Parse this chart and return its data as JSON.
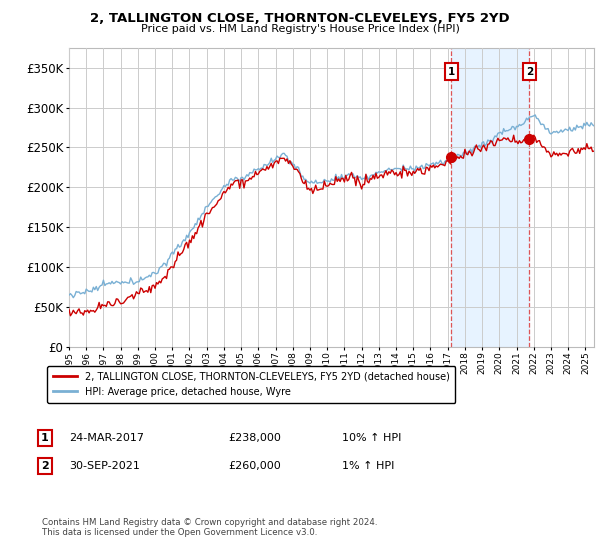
{
  "title": "2, TALLINGTON CLOSE, THORNTON-CLEVELEYS, FY5 2YD",
  "subtitle": "Price paid vs. HM Land Registry's House Price Index (HPI)",
  "ytick_values": [
    0,
    50000,
    100000,
    150000,
    200000,
    250000,
    300000,
    350000
  ],
  "ytick_labels": [
    "£0",
    "£50K",
    "£100K",
    "£150K",
    "£200K",
    "£250K",
    "£300K",
    "£350K"
  ],
  "ylim": [
    0,
    375000
  ],
  "xlim": [
    1995,
    2025.5
  ],
  "legend_label_red": "2, TALLINGTON CLOSE, THORNTON-CLEVELEYS, FY5 2YD (detached house)",
  "legend_label_blue": "HPI: Average price, detached house, Wyre",
  "sale1_label": "1",
  "sale1_date": "24-MAR-2017",
  "sale1_price": "£238,000",
  "sale1_hpi": "10% ↑ HPI",
  "sale1_x": 2017.22,
  "sale1_y": 238000,
  "sale2_label": "2",
  "sale2_date": "30-SEP-2021",
  "sale2_price": "£260,000",
  "sale2_hpi": "1% ↑ HPI",
  "sale2_x": 2021.75,
  "sale2_y": 260000,
  "footnote": "Contains HM Land Registry data © Crown copyright and database right 2024.\nThis data is licensed under the Open Government Licence v3.0.",
  "red_color": "#cc0000",
  "blue_color": "#7ab0d4",
  "blue_fill_color": "#ddeeff",
  "dashed_color": "#dd4444",
  "grid_color": "#cccccc",
  "label_box_color": "#cc0000"
}
